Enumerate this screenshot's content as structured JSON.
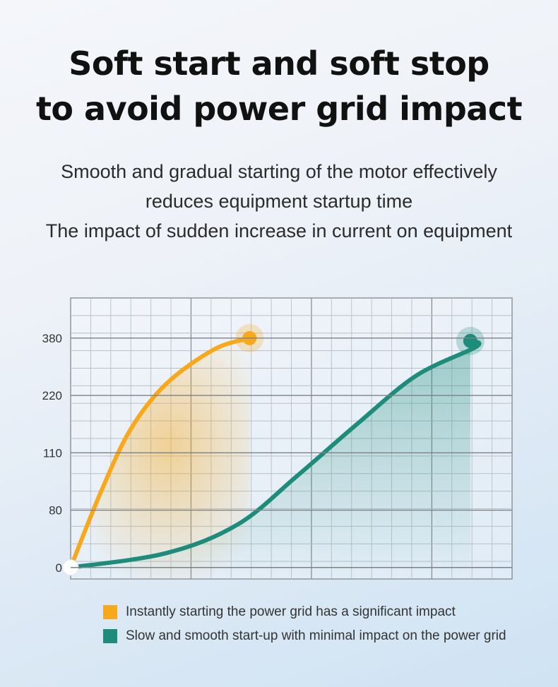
{
  "title": [
    "Soft start and soft stop",
    "to avoid power grid impact"
  ],
  "subtitle": [
    "Smooth and gradual starting of the motor effectively",
    "reduces equipment startup time",
    "The impact of sudden increase in current on equipment"
  ],
  "colors": {
    "orange": "#f7a81b",
    "teal": "#1d8c7b"
  },
  "chart_data": {
    "type": "line",
    "title": "",
    "xlabel": "",
    "ylabel": "",
    "y_scale": "categorical",
    "y_ticks": [
      "0",
      "80",
      "110",
      "220",
      "380"
    ],
    "x_ticks": [],
    "grid": true,
    "legend_position": "bottom",
    "series": [
      {
        "name": "Instantly starting the power grid has a significant impact",
        "color": "#f7a81b",
        "points": [
          [
            0,
            0
          ],
          [
            0.25,
            1.3
          ],
          [
            0.5,
            2.4
          ],
          [
            0.8,
            3.2
          ],
          [
            1.2,
            3.8
          ],
          [
            1.5,
            4.0
          ]
        ]
      },
      {
        "name": "Slow and smooth start-up with minimal impact on the power grid",
        "color": "#1d8c7b",
        "points": [
          [
            0,
            0
          ],
          [
            0.8,
            0.25
          ],
          [
            1.4,
            0.75
          ],
          [
            1.9,
            1.6
          ],
          [
            2.4,
            2.5
          ],
          [
            2.9,
            3.35
          ],
          [
            3.4,
            3.85
          ],
          [
            3.3,
            3.9
          ],
          [
            3.35,
            4.0
          ]
        ]
      }
    ],
    "x_range": [
      0,
      3.7
    ],
    "y_range": [
      -0.2,
      4.7
    ]
  }
}
